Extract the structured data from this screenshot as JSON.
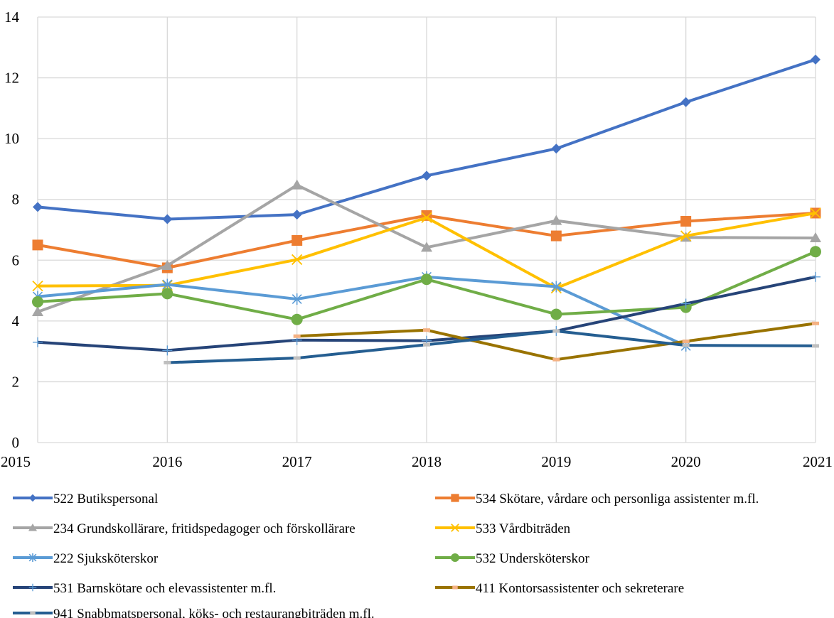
{
  "chart_data": {
    "type": "line",
    "x": [
      "2015",
      "2016",
      "2017",
      "2018",
      "2019",
      "2020",
      "2021"
    ],
    "ylim": [
      0,
      14
    ],
    "yticks": [
      0,
      2,
      4,
      6,
      8,
      10,
      12,
      14
    ],
    "grid": true,
    "legend_position": "bottom",
    "series": [
      {
        "name": "522 Butikspersonal",
        "color": "#4472C4",
        "marker": "diamond",
        "values": [
          7.75,
          7.35,
          7.5,
          8.78,
          9.67,
          11.2,
          12.6
        ]
      },
      {
        "name": "534 Skötare, vårdare och personliga assistenter m.fl.",
        "color": "#ED7D31",
        "marker": "square",
        "values": [
          6.5,
          5.75,
          6.65,
          7.47,
          6.8,
          7.28,
          7.55
        ]
      },
      {
        "name": "234 Grundskollärare, fritidspedagoger och förskollärare",
        "color": "#A5A5A5",
        "marker": "triangle",
        "values": [
          4.3,
          5.82,
          8.47,
          6.42,
          7.3,
          6.75,
          6.73
        ]
      },
      {
        "name": "533 Vårdbiträden",
        "color": "#FFC000",
        "marker": "x",
        "values": [
          5.15,
          5.17,
          6.02,
          7.4,
          5.08,
          6.8,
          7.55
        ]
      },
      {
        "name": "222 Sjuksköterskor",
        "color": "#5B9BD5",
        "marker": "star",
        "values": [
          4.8,
          5.2,
          4.72,
          5.45,
          5.13,
          3.18,
          null
        ]
      },
      {
        "name": "532 Undersköterskor",
        "color": "#70AD47",
        "marker": "circle",
        "values": [
          4.63,
          4.9,
          4.05,
          5.37,
          4.22,
          4.45,
          6.28
        ]
      },
      {
        "name": "531 Barnskötare och elevassistenter m.fl.",
        "color": "#264478",
        "marker": "plus",
        "values": [
          3.3,
          3.03,
          3.37,
          3.35,
          3.67,
          4.57,
          5.45
        ]
      },
      {
        "name": "411 Kontorsassistenter och sekreterare",
        "color": "#997300",
        "marker": "dash-pink",
        "values": [
          null,
          null,
          3.5,
          3.7,
          2.73,
          3.33,
          3.92
        ]
      },
      {
        "name": "941 Snabbmatspersonal, köks- och restaurangbiträden m.fl.",
        "color": "#255E91",
        "marker": "dash-gray",
        "values": [
          null,
          2.63,
          2.78,
          3.22,
          3.67,
          3.2,
          3.18
        ]
      }
    ]
  }
}
